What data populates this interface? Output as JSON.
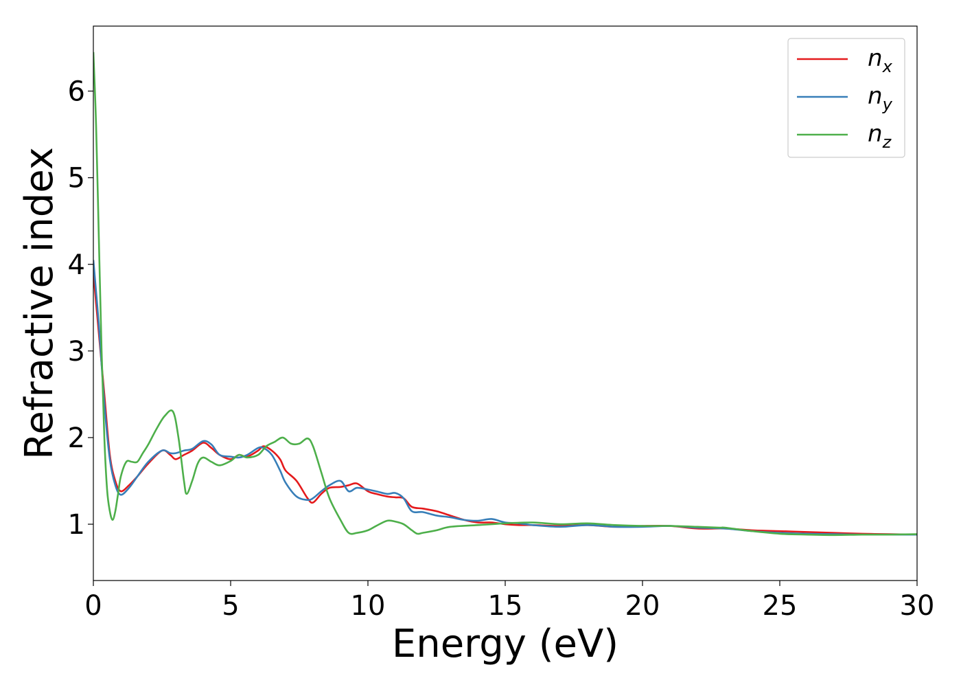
{
  "chart_data": {
    "type": "line",
    "title": "",
    "xlabel": "Energy (eV)",
    "ylabel": "Refractive index",
    "xlim": [
      0,
      30
    ],
    "ylim": [
      0.35,
      6.75
    ],
    "xticks": [
      0,
      5,
      10,
      15,
      20,
      25,
      30
    ],
    "yticks": [
      1,
      2,
      3,
      4,
      5,
      6
    ],
    "grid": false,
    "legend_position": "top-right",
    "series": [
      {
        "name": "n",
        "subscript": "x",
        "color": "#e41a1c",
        "x": [
          0,
          0.2,
          0.4,
          0.6,
          0.8,
          1.0,
          1.3,
          1.6,
          2.0,
          2.5,
          2.8,
          3.0,
          3.3,
          3.6,
          4.0,
          4.3,
          4.6,
          5.0,
          5.3,
          5.6,
          6.0,
          6.2,
          6.5,
          6.8,
          7.0,
          7.4,
          7.8,
          8.0,
          8.3,
          8.6,
          9.0,
          9.3,
          9.6,
          10.0,
          10.3,
          10.7,
          11.0,
          11.3,
          11.6,
          12.0,
          12.5,
          13.0,
          13.5,
          14.0,
          14.5,
          15.0,
          15.5,
          16.0,
          17.0,
          18.0,
          19.0,
          20.0,
          21.0,
          22.0,
          23.0,
          24.0,
          25.0,
          26.0,
          27.0,
          28.0,
          29.0,
          30.0
        ],
        "y": [
          3.9,
          3.2,
          2.5,
          1.8,
          1.5,
          1.38,
          1.45,
          1.55,
          1.7,
          1.85,
          1.8,
          1.75,
          1.8,
          1.85,
          1.94,
          1.88,
          1.8,
          1.75,
          1.8,
          1.78,
          1.85,
          1.9,
          1.85,
          1.75,
          1.62,
          1.5,
          1.3,
          1.25,
          1.35,
          1.42,
          1.43,
          1.45,
          1.47,
          1.38,
          1.35,
          1.32,
          1.31,
          1.3,
          1.2,
          1.18,
          1.15,
          1.1,
          1.05,
          1.02,
          1.02,
          1.0,
          0.99,
          0.99,
          0.98,
          0.99,
          0.97,
          0.98,
          0.98,
          0.95,
          0.95,
          0.93,
          0.92,
          0.91,
          0.9,
          0.89,
          0.885,
          0.88
        ]
      },
      {
        "name": "n",
        "subscript": "y",
        "color": "#377eb8",
        "x": [
          0,
          0.2,
          0.4,
          0.6,
          0.8,
          1.0,
          1.3,
          1.6,
          2.0,
          2.5,
          2.8,
          3.0,
          3.3,
          3.6,
          4.0,
          4.3,
          4.6,
          5.0,
          5.3,
          5.6,
          6.0,
          6.2,
          6.5,
          6.8,
          7.0,
          7.4,
          7.8,
          8.0,
          8.3,
          8.6,
          9.0,
          9.3,
          9.6,
          10.0,
          10.3,
          10.7,
          11.0,
          11.3,
          11.6,
          12.0,
          12.5,
          13.0,
          13.5,
          14.0,
          14.5,
          15.0,
          15.5,
          16.0,
          17.0,
          18.0,
          19.0,
          20.0,
          21.0,
          22.0,
          23.0,
          24.0,
          25.0,
          26.0,
          27.0,
          28.0,
          29.0,
          30.0
        ],
        "y": [
          4.05,
          3.3,
          2.4,
          1.75,
          1.45,
          1.34,
          1.42,
          1.55,
          1.72,
          1.85,
          1.82,
          1.82,
          1.85,
          1.87,
          1.96,
          1.92,
          1.8,
          1.78,
          1.77,
          1.8,
          1.88,
          1.88,
          1.8,
          1.62,
          1.48,
          1.32,
          1.28,
          1.3,
          1.38,
          1.45,
          1.5,
          1.38,
          1.42,
          1.4,
          1.38,
          1.35,
          1.36,
          1.3,
          1.15,
          1.14,
          1.1,
          1.08,
          1.05,
          1.04,
          1.06,
          1.02,
          1.01,
          0.99,
          0.97,
          0.99,
          0.97,
          0.97,
          0.98,
          0.96,
          0.95,
          0.92,
          0.9,
          0.89,
          0.885,
          0.88,
          0.88,
          0.88
        ]
      },
      {
        "name": "n",
        "subscript": "z",
        "color": "#4daf4a",
        "x": [
          0,
          0.1,
          0.2,
          0.3,
          0.4,
          0.5,
          0.6,
          0.7,
          0.8,
          0.9,
          1.0,
          1.2,
          1.4,
          1.6,
          1.8,
          2.0,
          2.3,
          2.6,
          2.9,
          3.1,
          3.3,
          3.4,
          3.6,
          3.8,
          4.0,
          4.3,
          4.6,
          5.0,
          5.3,
          5.6,
          6.0,
          6.3,
          6.6,
          6.9,
          7.2,
          7.5,
          7.8,
          8.0,
          8.3,
          8.6,
          9.0,
          9.3,
          9.6,
          10.0,
          10.3,
          10.7,
          11.0,
          11.3,
          11.6,
          11.8,
          12.0,
          12.5,
          13.0,
          14.0,
          15.0,
          16.0,
          17.0,
          18.0,
          19.0,
          20.0,
          21.0,
          22.0,
          22.8,
          23.0,
          24.0,
          25.0,
          26.0,
          27.0,
          28.0,
          29.0,
          30.0
        ],
        "y": [
          6.45,
          5.6,
          4.3,
          3.0,
          2.0,
          1.4,
          1.15,
          1.05,
          1.15,
          1.35,
          1.55,
          1.72,
          1.72,
          1.72,
          1.82,
          1.92,
          2.1,
          2.25,
          2.3,
          2.0,
          1.5,
          1.35,
          1.5,
          1.7,
          1.77,
          1.72,
          1.68,
          1.73,
          1.8,
          1.77,
          1.8,
          1.9,
          1.95,
          2.0,
          1.93,
          1.93,
          1.99,
          1.9,
          1.6,
          1.3,
          1.05,
          0.9,
          0.9,
          0.93,
          0.98,
          1.04,
          1.03,
          1.0,
          0.93,
          0.89,
          0.9,
          0.93,
          0.97,
          0.99,
          1.01,
          1.02,
          1.0,
          1.01,
          0.99,
          0.98,
          0.98,
          0.97,
          0.96,
          0.96,
          0.92,
          0.89,
          0.88,
          0.875,
          0.88,
          0.88,
          0.885
        ]
      }
    ]
  }
}
